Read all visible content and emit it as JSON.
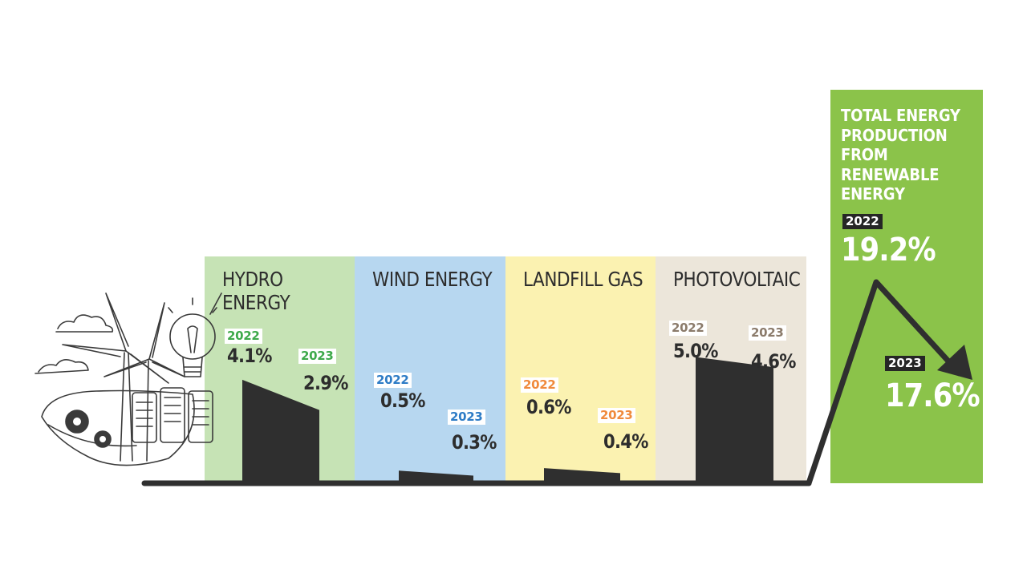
{
  "colors": {
    "hydro": "#c6e3b5",
    "wind": "#b7d7f0",
    "landfill": "#fbf2b1",
    "photovoltaic": "#ece6da",
    "total": "#8bc34a",
    "bar": "#2f2f2f",
    "hydro_year": "#3ea94a",
    "wind_year": "#2e7cc6",
    "landfill_year": "#f08a3c",
    "photovoltaic_year": "#8b7b6b"
  },
  "chart_data": {
    "type": "bar",
    "categories": [
      "HYDRO ENERGY",
      "WIND ENERGY",
      "LANDFILL GAS",
      "PHOTOVOLTAIC"
    ],
    "series": [
      {
        "name": "2022",
        "values": [
          4.1,
          0.5,
          0.6,
          5.0
        ]
      },
      {
        "name": "2023",
        "values": [
          2.9,
          0.3,
          0.4,
          4.6
        ]
      }
    ],
    "value_labels": {
      "2022": [
        "4.1%",
        "0.5%",
        "0.6%",
        "5.0%"
      ],
      "2023": [
        "2.9%",
        "0.3%",
        "0.4%",
        "4.6%"
      ]
    },
    "total": {
      "title": "TOTAL ENERGY PRODUCTION FROM RENEWABLE ENERGY",
      "year_2022": "2022",
      "value_2022": 19.2,
      "label_2022": "19.2%",
      "year_2023": "2023",
      "value_2023": 17.6,
      "label_2023": "17.6%"
    }
  },
  "panels": [
    {
      "title": "HYDRO ENERGY",
      "year_a": "2022",
      "value_a": "4.1%",
      "year_b": "2023",
      "value_b": "2.9%"
    },
    {
      "title": "WIND ENERGY",
      "year_a": "2022",
      "value_a": "0.5%",
      "year_b": "2023",
      "value_b": "0.3%"
    },
    {
      "title": "LANDFILL GAS",
      "year_a": "2022",
      "value_a": "0.6%",
      "year_b": "2023",
      "value_b": "0.4%"
    },
    {
      "title": "PHOTOVOLTAIC",
      "year_a": "2022",
      "value_a": "5.0%",
      "year_b": "2023",
      "value_b": "4.6%"
    }
  ],
  "illustration": {
    "icon": "renewable-energy-illustration-icon"
  }
}
